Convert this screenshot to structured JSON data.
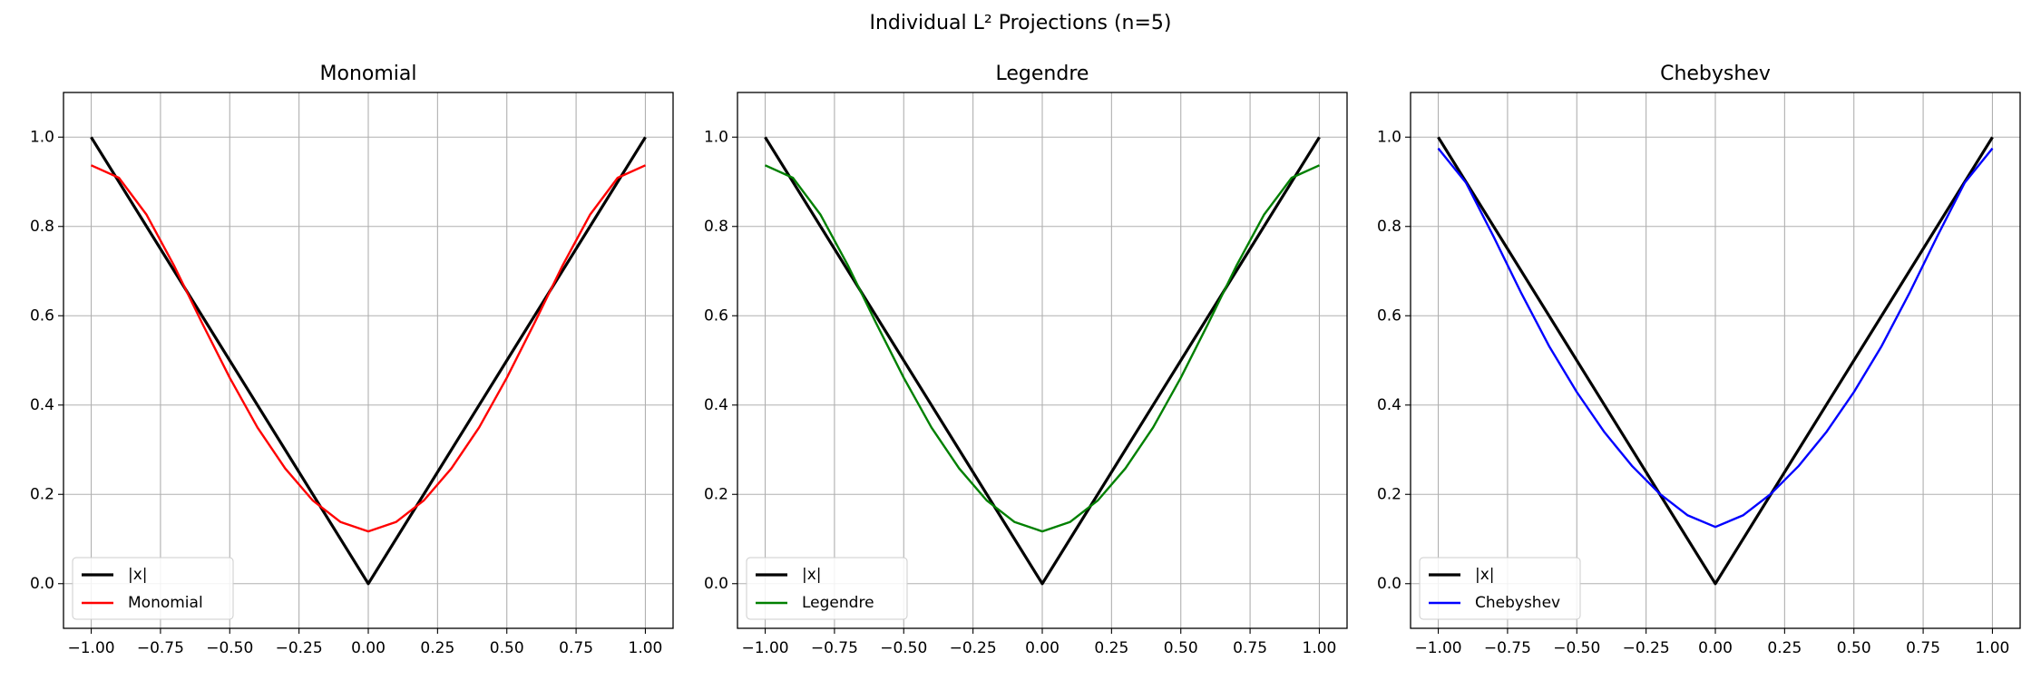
{
  "figure": {
    "suptitle": "Individual L² Projections (n=5)"
  },
  "chart_data": [
    {
      "type": "line",
      "title": "Monomial",
      "xlabel": "",
      "ylabel": "",
      "xlim": [
        -1.1,
        1.1
      ],
      "ylim": [
        -0.1,
        1.1
      ],
      "xticks": [
        -1.0,
        -0.75,
        -0.5,
        -0.25,
        0.0,
        0.25,
        0.5,
        0.75,
        1.0
      ],
      "xtick_labels": [
        "−1.00",
        "−0.75",
        "−0.50",
        "−0.25",
        "0.00",
        "0.25",
        "0.50",
        "0.75",
        "1.00"
      ],
      "yticks": [
        0.0,
        0.2,
        0.4,
        0.6,
        0.8,
        1.0
      ],
      "ytick_labels": [
        "0.0",
        "0.2",
        "0.4",
        "0.6",
        "0.8",
        "1.0"
      ],
      "grid": true,
      "legend_position": "lower-left",
      "series": [
        {
          "name": "|x|",
          "color": "#000000",
          "x": [
            -1.0,
            0.0,
            1.0
          ],
          "y": [
            1.0,
            0.0,
            1.0
          ]
        },
        {
          "name": "Monomial",
          "color": "#ff0000",
          "x": [
            -1.0,
            -0.9,
            -0.8,
            -0.7,
            -0.6,
            -0.5,
            -0.4,
            -0.3,
            -0.2,
            -0.1,
            0.0,
            0.1,
            0.2,
            0.3,
            0.4,
            0.5,
            0.6,
            0.7,
            0.8,
            0.9,
            1.0
          ],
          "y": [
            0.937,
            0.909,
            0.826,
            0.711,
            0.584,
            0.461,
            0.35,
            0.258,
            0.186,
            0.138,
            0.117,
            0.138,
            0.186,
            0.258,
            0.35,
            0.461,
            0.584,
            0.711,
            0.826,
            0.909,
            0.937
          ]
        }
      ]
    },
    {
      "type": "line",
      "title": "Legendre",
      "xlabel": "",
      "ylabel": "",
      "xlim": [
        -1.1,
        1.1
      ],
      "ylim": [
        -0.1,
        1.1
      ],
      "xticks": [
        -1.0,
        -0.75,
        -0.5,
        -0.25,
        0.0,
        0.25,
        0.5,
        0.75,
        1.0
      ],
      "xtick_labels": [
        "−1.00",
        "−0.75",
        "−0.50",
        "−0.25",
        "0.00",
        "0.25",
        "0.50",
        "0.75",
        "1.00"
      ],
      "yticks": [
        0.0,
        0.2,
        0.4,
        0.6,
        0.8,
        1.0
      ],
      "ytick_labels": [
        "0.0",
        "0.2",
        "0.4",
        "0.6",
        "0.8",
        "1.0"
      ],
      "grid": true,
      "legend_position": "lower-left",
      "series": [
        {
          "name": "|x|",
          "color": "#000000",
          "x": [
            -1.0,
            0.0,
            1.0
          ],
          "y": [
            1.0,
            0.0,
            1.0
          ]
        },
        {
          "name": "Legendre",
          "color": "#008000",
          "x": [
            -1.0,
            -0.9,
            -0.8,
            -0.7,
            -0.6,
            -0.5,
            -0.4,
            -0.3,
            -0.2,
            -0.1,
            0.0,
            0.1,
            0.2,
            0.3,
            0.4,
            0.5,
            0.6,
            0.7,
            0.8,
            0.9,
            1.0
          ],
          "y": [
            0.937,
            0.909,
            0.826,
            0.711,
            0.584,
            0.461,
            0.35,
            0.258,
            0.186,
            0.138,
            0.117,
            0.138,
            0.186,
            0.258,
            0.35,
            0.461,
            0.584,
            0.711,
            0.826,
            0.909,
            0.937
          ]
        }
      ]
    },
    {
      "type": "line",
      "title": "Chebyshev",
      "xlabel": "",
      "ylabel": "",
      "xlim": [
        -1.1,
        1.1
      ],
      "ylim": [
        -0.1,
        1.1
      ],
      "xticks": [
        -1.0,
        -0.75,
        -0.5,
        -0.25,
        0.0,
        0.25,
        0.5,
        0.75,
        1.0
      ],
      "xtick_labels": [
        "−1.00",
        "−0.75",
        "−0.50",
        "−0.25",
        "0.00",
        "0.25",
        "0.50",
        "0.75",
        "1.00"
      ],
      "yticks": [
        0.0,
        0.2,
        0.4,
        0.6,
        0.8,
        1.0
      ],
      "ytick_labels": [
        "0.0",
        "0.2",
        "0.4",
        "0.6",
        "0.8",
        "1.0"
      ],
      "grid": true,
      "legend_position": "lower-left",
      "series": [
        {
          "name": "|x|",
          "color": "#000000",
          "x": [
            -1.0,
            0.0,
            1.0
          ],
          "y": [
            1.0,
            0.0,
            1.0
          ]
        },
        {
          "name": "Chebyshev",
          "color": "#0000ff",
          "x": [
            -1.0,
            -0.9,
            -0.8,
            -0.7,
            -0.6,
            -0.5,
            -0.4,
            -0.3,
            -0.2,
            -0.1,
            0.0,
            0.1,
            0.2,
            0.3,
            0.4,
            0.5,
            0.6,
            0.7,
            0.8,
            0.9,
            1.0
          ],
          "y": [
            0.975,
            0.898,
            0.777,
            0.65,
            0.532,
            0.429,
            0.339,
            0.263,
            0.201,
            0.153,
            0.127,
            0.153,
            0.201,
            0.263,
            0.339,
            0.429,
            0.532,
            0.65,
            0.777,
            0.898,
            0.975
          ]
        }
      ]
    }
  ]
}
